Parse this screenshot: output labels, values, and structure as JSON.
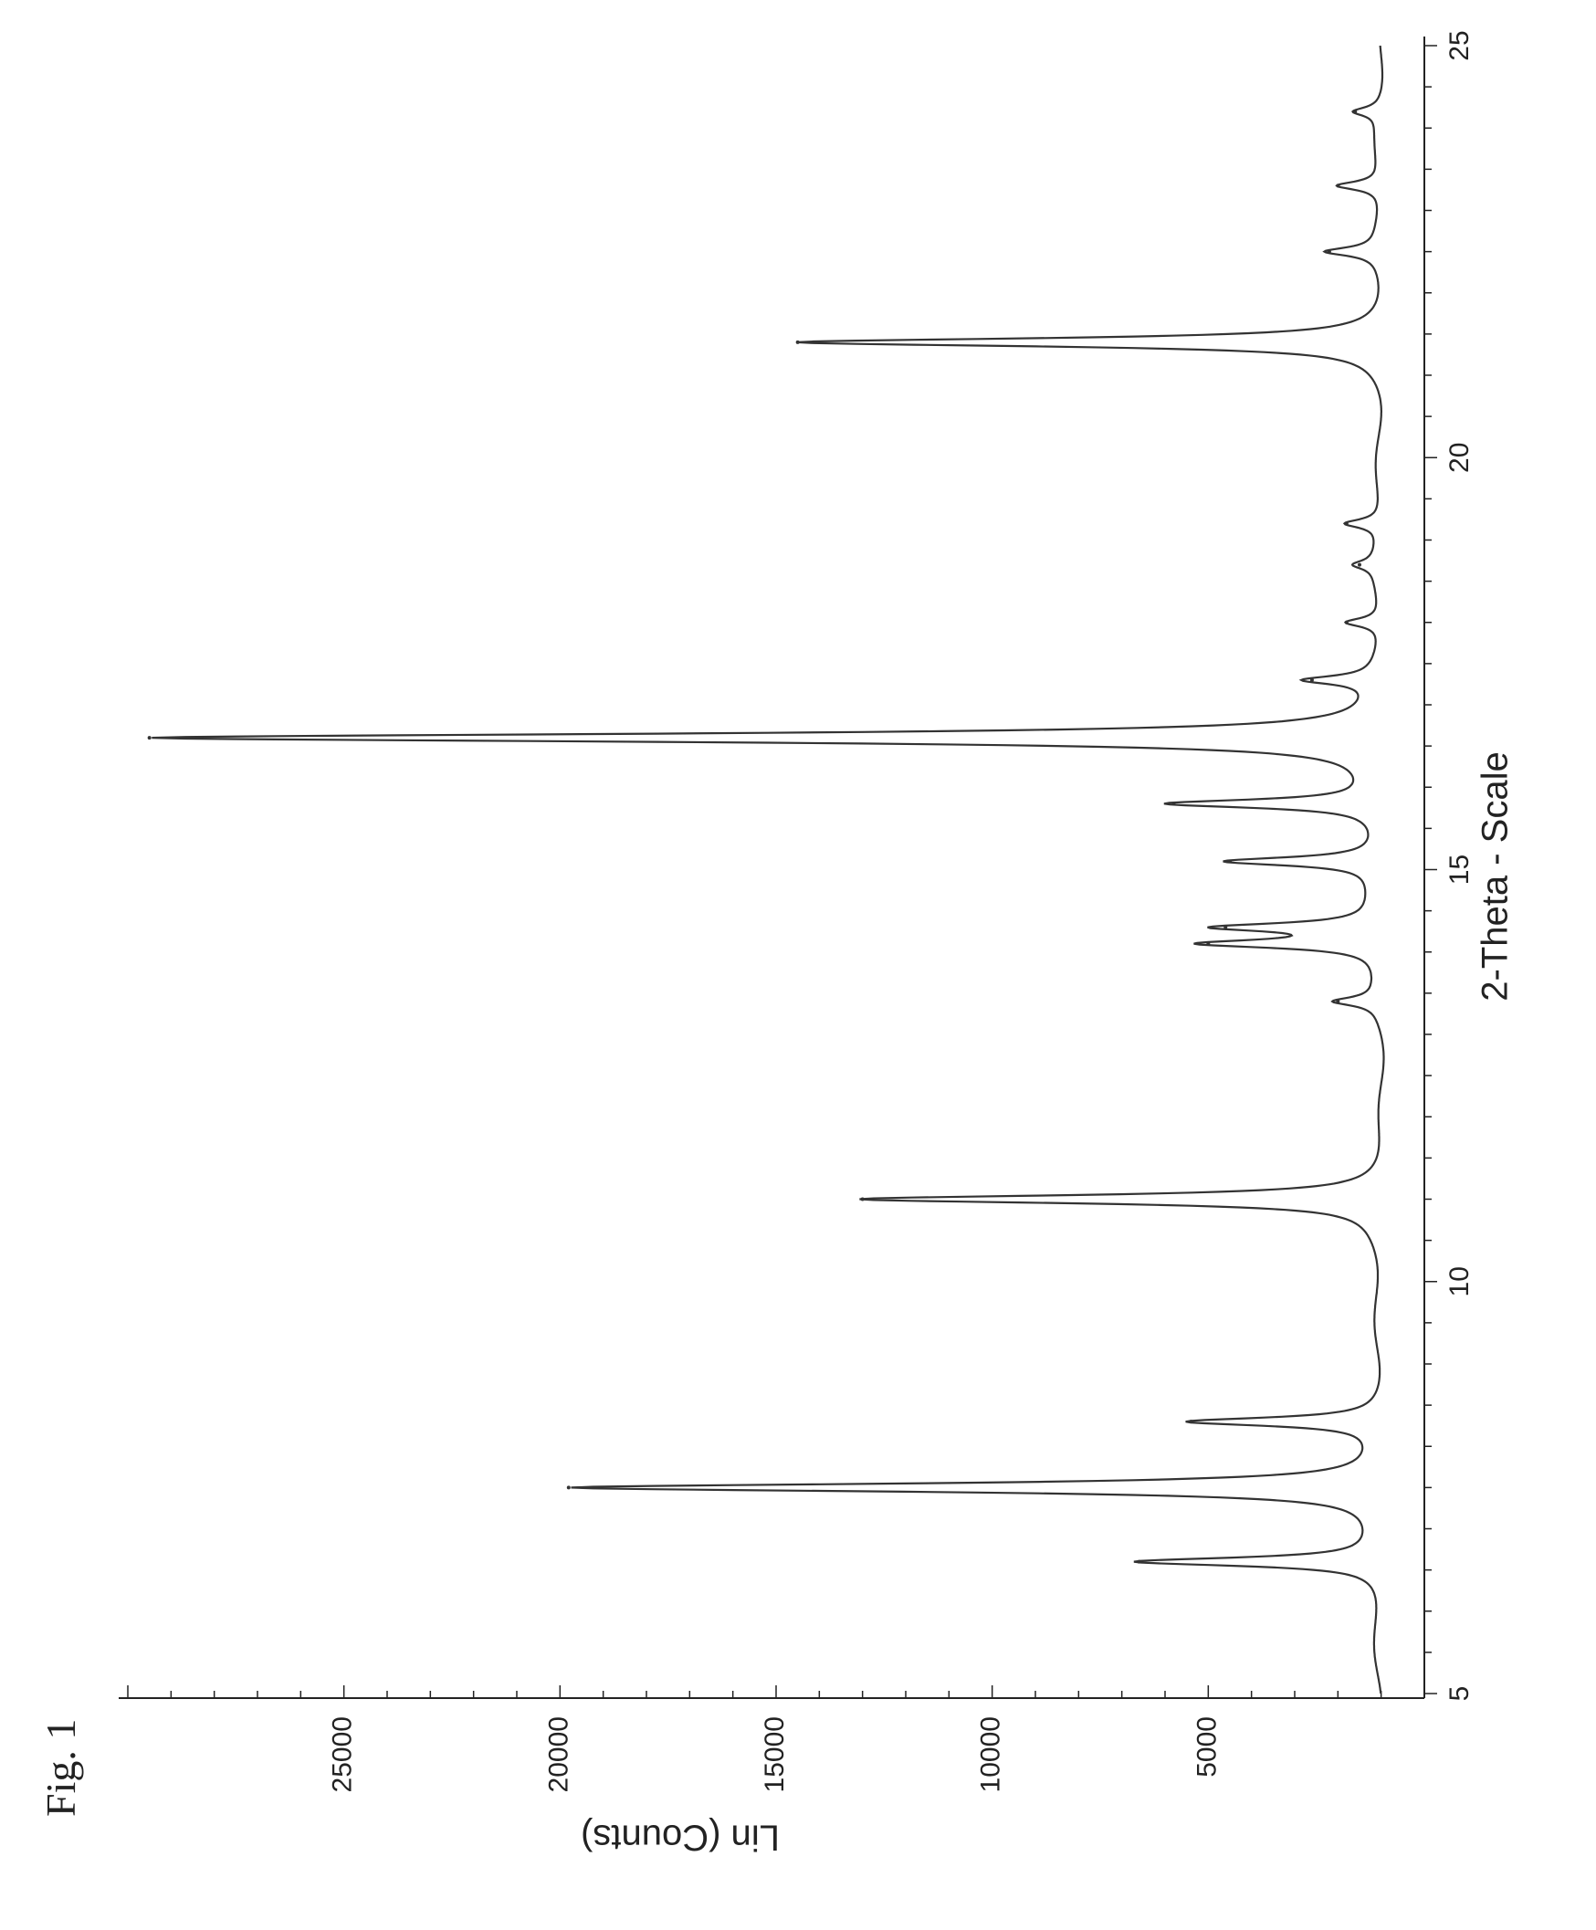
{
  "figure_label": "Fig. 1",
  "chart_data": {
    "type": "line",
    "title": "",
    "xlabel": "2-Theta - Scale",
    "ylabel": "Lin (Counts)",
    "xlim": [
      5,
      25
    ],
    "ylim": [
      0,
      30000
    ],
    "x_ticks": [
      5,
      10,
      15,
      20,
      25
    ],
    "y_ticks": [
      5000,
      10000,
      15000,
      20000,
      25000
    ],
    "grid": false,
    "orientation": "rotated 90 degrees counter-clockwise (2-Theta runs down the page)",
    "baseline": 1000,
    "series": [
      {
        "color": "#333333",
        "peaks": [
          {
            "x": 6.6,
            "y": 6600
          },
          {
            "x": 7.5,
            "y": 19800
          },
          {
            "x": 8.3,
            "y": 5400
          },
          {
            "x": 11.0,
            "y": 13000
          },
          {
            "x": 13.4,
            "y": 2000
          },
          {
            "x": 14.1,
            "y": 5000
          },
          {
            "x": 14.3,
            "y": 4600
          },
          {
            "x": 15.1,
            "y": 4500
          },
          {
            "x": 15.8,
            "y": 5800
          },
          {
            "x": 16.6,
            "y": 29500
          },
          {
            "x": 17.3,
            "y": 2600
          },
          {
            "x": 18.0,
            "y": 1800
          },
          {
            "x": 18.7,
            "y": 1500
          },
          {
            "x": 19.2,
            "y": 1800
          },
          {
            "x": 21.4,
            "y": 14500
          },
          {
            "x": 22.5,
            "y": 2200
          },
          {
            "x": 23.3,
            "y": 2000
          },
          {
            "x": 24.2,
            "y": 1600
          }
        ]
      }
    ]
  }
}
